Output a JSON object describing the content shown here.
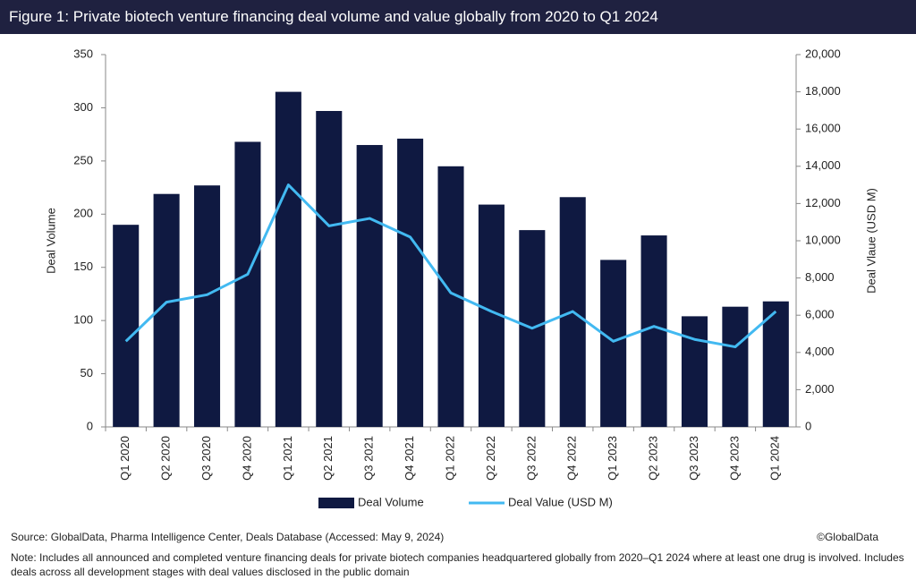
{
  "chart_data": {
    "type": "bar",
    "title": "Figure 1: Private biotech venture financing deal volume and value globally from 2020 to Q1 2024",
    "categories": [
      "Q1 2020",
      "Q2 2020",
      "Q3 2020",
      "Q4 2020",
      "Q1 2021",
      "Q2 2021",
      "Q3 2021",
      "Q4 2021",
      "Q1 2022",
      "Q2 2022",
      "Q3 2022",
      "Q4 2022",
      "Q1 2023",
      "Q2 2023",
      "Q3 2023",
      "Q4 2023",
      "Q1 2024"
    ],
    "series": [
      {
        "name": "Deal Volume",
        "type": "bar",
        "color": "#0f1941",
        "values": [
          190,
          219,
          227,
          268,
          315,
          297,
          265,
          271,
          245,
          209,
          185,
          216,
          157,
          180,
          104,
          113,
          118
        ]
      },
      {
        "name": "Deal Value (USD M)",
        "type": "line",
        "axis": "y2",
        "color": "#42b9f1",
        "values": [
          4600,
          6700,
          7100,
          8200,
          13000,
          10800,
          11200,
          10200,
          7200,
          6200,
          5300,
          6200,
          4600,
          5400,
          4700,
          4300,
          6200
        ]
      }
    ],
    "ylabel": "Deal Volume",
    "y2label": "Deal Vlaue (USD M)",
    "ylim": [
      0,
      350
    ],
    "yticks": [
      0,
      50,
      100,
      150,
      200,
      250,
      300,
      350
    ],
    "y2lim": [
      0,
      20000
    ],
    "y2ticks": [
      0,
      {
        "value": 2000,
        "label": "2,000"
      },
      {
        "value": 4000,
        "label": "4,000"
      },
      {
        "value": 6000,
        "label": "6,000"
      },
      {
        "value": 8000,
        "label": "8,000"
      },
      {
        "value": 10000,
        "label": "10,000"
      },
      {
        "value": 12000,
        "label": "12,000"
      },
      {
        "value": 14000,
        "label": "14,000"
      },
      {
        "value": 16000,
        "label": "16,000"
      },
      {
        "value": 18000,
        "label": "18,000"
      },
      {
        "value": 20000,
        "label": "20,000"
      }
    ],
    "grid": false,
    "legend": "bottom",
    "source": "Source: GlobalData, Pharma Intelligence Center, Deals Database (Accessed: May 9, 2024)",
    "copyright": "©GlobalData",
    "note": "Note: Includes all announced and completed venture financing deals for private biotech companies headquartered globally from 2020–Q1 2024 where at least one drug is involved. Includes deals across all development stages with deal values disclosed in the public domain"
  }
}
